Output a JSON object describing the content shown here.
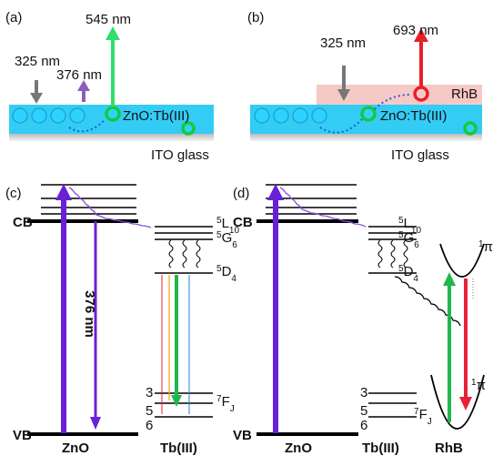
{
  "panels": {
    "a": {
      "label": "(a)",
      "emission": "545 nm",
      "excitation": "325 nm",
      "absorption": "376 nm",
      "layer": "ZnO:Tb(III)",
      "substrate": "ITO glass"
    },
    "b": {
      "label": "(b)",
      "emission": "693 nm",
      "excitation": "325 nm",
      "dye": "RhB",
      "layer": "ZnO:Tb(III)",
      "substrate": "ITO glass"
    },
    "c": {
      "label": "(c)",
      "cb": "CB",
      "vb": "VB",
      "transition": "376 nm",
      "host": "ZnO",
      "ion": "Tb(III)",
      "L10": {
        "sup": "5",
        "base": "L",
        "sub": "10"
      },
      "G6": {
        "sup": "5",
        "base": "G",
        "sub": "6"
      },
      "D4": {
        "sup": "5",
        "base": "D",
        "sub": "4"
      },
      "FJ": {
        "sup": "7",
        "base": "F",
        "sub": "J"
      },
      "sublevels": [
        "3",
        "5",
        "6"
      ]
    },
    "d": {
      "label": "(d)",
      "cb": "CB",
      "vb": "VB",
      "host": "ZnO",
      "ion": "Tb(III)",
      "dye": "RhB",
      "L10": {
        "sup": "5",
        "base": "L",
        "sub": "10"
      },
      "G6": {
        "sup": "5",
        "base": "G",
        "sub": "6"
      },
      "D4": {
        "sup": "5",
        "base": "D",
        "sub": "4"
      },
      "FJ": {
        "sup": "7",
        "base": "F",
        "sub": "J"
      },
      "sublevels": [
        "3",
        "5",
        "6"
      ],
      "excited": {
        "sup": "1",
        "base": "π"
      },
      "ground": {
        "sup": "1",
        "base": "π"
      }
    }
  }
}
